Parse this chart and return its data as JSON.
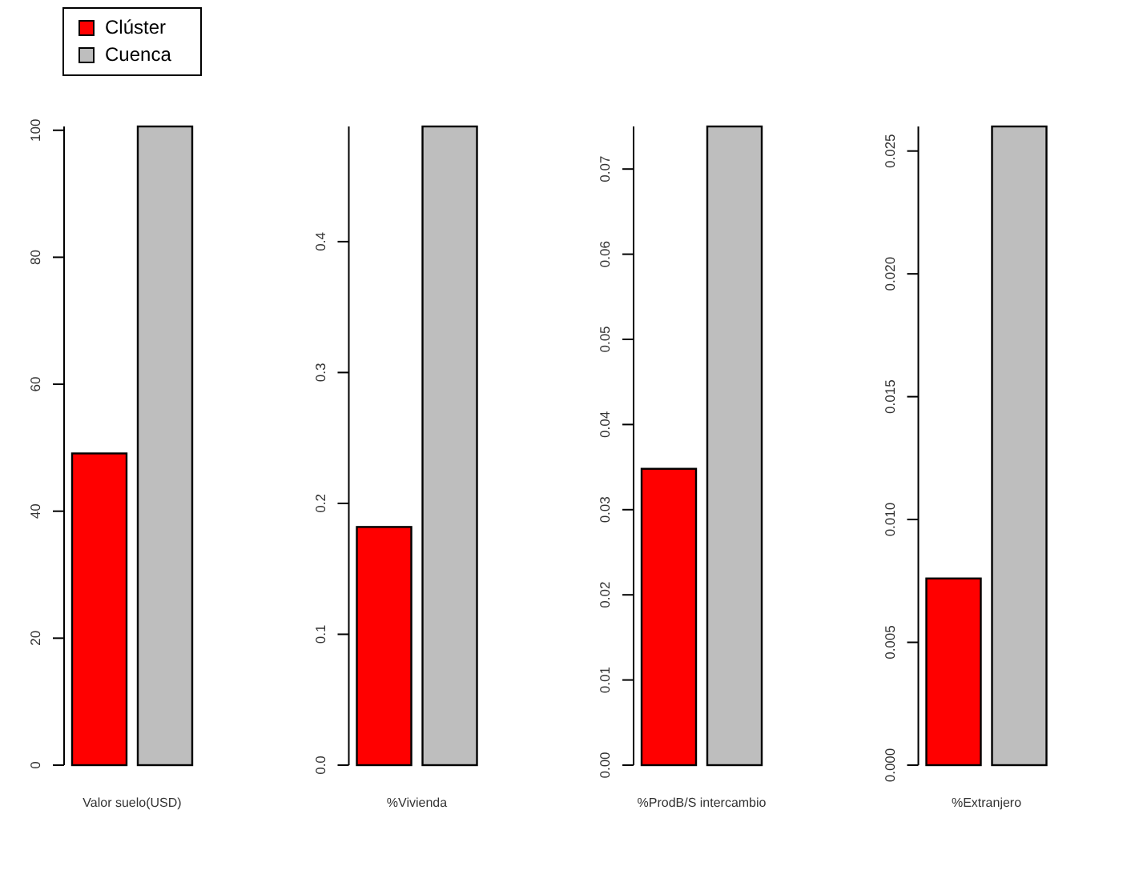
{
  "chart_data": [
    {
      "type": "bar",
      "categories": [
        "Valor suelo(USD)"
      ],
      "legend": "top",
      "ylim": [
        0,
        100.6
      ],
      "yticks": [
        0,
        20,
        40,
        60,
        80,
        100
      ],
      "series": [
        {
          "name": "Clúster",
          "color": "#ff0000",
          "values": [
            49.1
          ]
        },
        {
          "name": "Cuenca",
          "color": "#bebebe",
          "values": [
            100.6
          ]
        }
      ]
    },
    {
      "type": "bar",
      "categories": [
        "%Vivienda"
      ],
      "ylim": [
        0,
        0.488
      ],
      "yticks": [
        {
          "value": 0,
          "label": "0.0"
        },
        0.1,
        0.2,
        0.3,
        0.4
      ],
      "series": [
        {
          "color": "#ff0000",
          "values": [
            0.182
          ]
        },
        {
          "color": "#bebebe",
          "values": [
            0.488
          ]
        }
      ]
    },
    {
      "type": "bar",
      "categories": [
        "%ProdB/S intercambio"
      ],
      "ylim": [
        0,
        0.075
      ],
      "yticks": [
        {
          "value": 0,
          "label": "0.00"
        },
        0.01,
        0.02,
        0.03,
        0.04,
        0.05,
        0.06,
        0.07
      ],
      "series": [
        {
          "color": "#ff0000",
          "values": [
            0.0348
          ]
        },
        {
          "color": "#bebebe",
          "values": [
            0.075
          ]
        }
      ]
    },
    {
      "type": "bar",
      "categories": [
        "%Extranjero"
      ],
      "ylim": [
        0,
        0.026
      ],
      "yticks": [
        {
          "value": 0,
          "label": "0.000"
        },
        0.005,
        {
          "value": 0.01,
          "label": "0.010"
        },
        0.015,
        {
          "value": 0.02,
          "label": "0.020"
        },
        0.025
      ],
      "series": [
        {
          "color": "#ff0000",
          "values": [
            0.0076
          ]
        },
        {
          "color": "#bebebe",
          "values": [
            0.026
          ]
        }
      ]
    }
  ]
}
